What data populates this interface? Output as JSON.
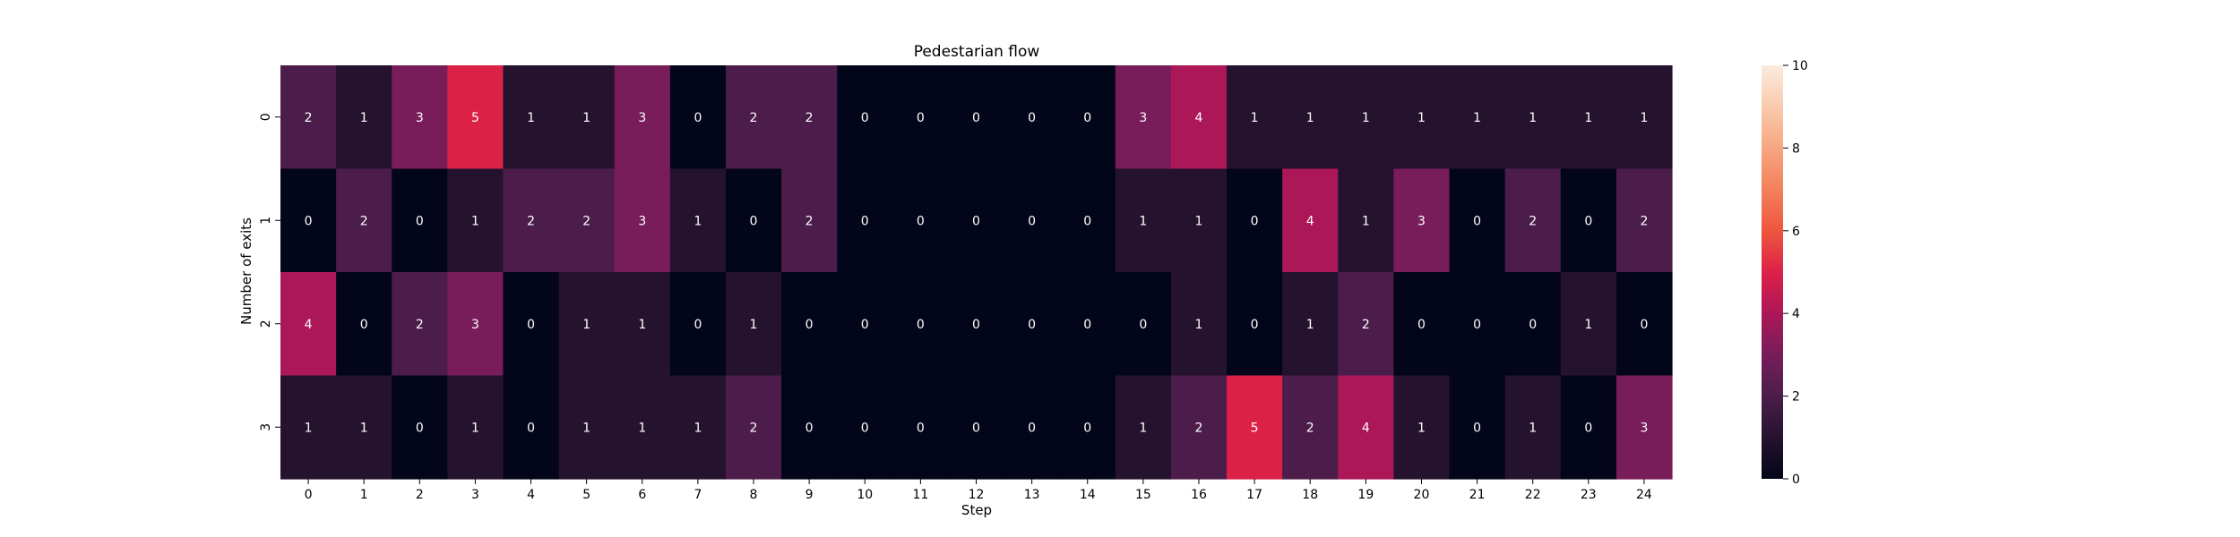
{
  "chart_data": {
    "type": "heatmap",
    "title": "Pedestarian flow",
    "xlabel": "Step",
    "ylabel": "Number of exits",
    "x_categories": [
      "0",
      "1",
      "2",
      "3",
      "4",
      "5",
      "6",
      "7",
      "8",
      "9",
      "10",
      "11",
      "12",
      "13",
      "14",
      "15",
      "16",
      "17",
      "18",
      "19",
      "20",
      "21",
      "22",
      "23",
      "24"
    ],
    "y_categories": [
      "0",
      "1",
      "2",
      "3"
    ],
    "values": [
      [
        2,
        1,
        3,
        5,
        1,
        1,
        3,
        0,
        2,
        2,
        0,
        0,
        0,
        0,
        0,
        3,
        4,
        1,
        1,
        1,
        1,
        1,
        1,
        1,
        1
      ],
      [
        0,
        2,
        0,
        1,
        2,
        2,
        3,
        1,
        0,
        2,
        0,
        0,
        0,
        0,
        0,
        1,
        1,
        0,
        4,
        1,
        3,
        0,
        2,
        0,
        2
      ],
      [
        4,
        0,
        2,
        3,
        0,
        1,
        1,
        0,
        1,
        0,
        0,
        0,
        0,
        0,
        0,
        0,
        1,
        0,
        1,
        2,
        0,
        0,
        0,
        1,
        0
      ],
      [
        1,
        1,
        0,
        1,
        0,
        1,
        1,
        1,
        2,
        0,
        0,
        0,
        0,
        0,
        0,
        1,
        2,
        5,
        2,
        4,
        1,
        0,
        1,
        0,
        3
      ]
    ],
    "colorbar": {
      "range": [
        0,
        10
      ],
      "ticks": [
        "0",
        "2",
        "4",
        "6",
        "8",
        "10"
      ],
      "colormap": "rocket"
    },
    "cell_labels": true,
    "grid": false
  }
}
